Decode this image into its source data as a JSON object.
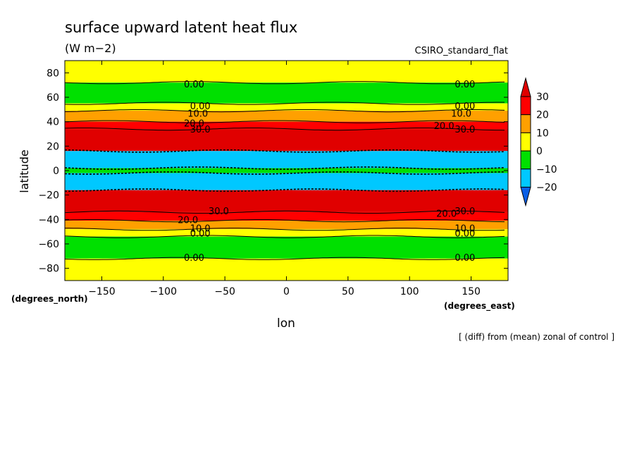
{
  "chart_data": {
    "type": "heatmap",
    "title": "surface upward latent heat flux",
    "units": "(W m−2)",
    "model": "CSIRO_standard_flat",
    "xlabel": "lon",
    "ylabel": "latitude",
    "x_units": "(degrees_east)",
    "y_units": "(degrees_north)",
    "footnote": "[ (diff) from (mean) zonal of control ]",
    "xlim": [
      -180,
      180
    ],
    "ylim": [
      -90,
      90
    ],
    "x_ticks": [
      -150,
      -100,
      -50,
      0,
      50,
      100,
      150
    ],
    "x_tick_labels": [
      "−150",
      "−100",
      "−50",
      "0",
      "50",
      "100",
      "150"
    ],
    "y_ticks": [
      80,
      60,
      40,
      20,
      0,
      -20,
      -40,
      -60,
      -80
    ],
    "y_tick_labels": [
      "80",
      "60",
      "40",
      "20",
      "0",
      "−20",
      "−40",
      "−60",
      "−80"
    ],
    "colorbar": {
      "levels": [
        -20,
        -10,
        0,
        10,
        20,
        30
      ],
      "labels": [
        "−20",
        "−10",
        "0",
        "10",
        "20",
        "30"
      ],
      "colors": [
        "#0a5fe6",
        "#00c8ff",
        "#00e000",
        "#ffff00",
        "#ffa000",
        "#ff0000",
        "#e00000"
      ]
    },
    "zonal_bands": [
      {
        "lat_from": 90,
        "lat_to": 72,
        "value_range": [
          0,
          10
        ]
      },
      {
        "lat_from": 72,
        "lat_to": 55,
        "value_range": [
          -10,
          0
        ]
      },
      {
        "lat_from": 55,
        "lat_to": 49,
        "value_range": [
          0,
          10
        ]
      },
      {
        "lat_from": 49,
        "lat_to": 40,
        "value_range": [
          10,
          20
        ]
      },
      {
        "lat_from": 40,
        "lat_to": 34,
        "value_range": [
          20,
          30
        ]
      },
      {
        "lat_from": 34,
        "lat_to": 16,
        "value_range": [
          30,
          40
        ]
      },
      {
        "lat_from": 16,
        "lat_to": 2,
        "value_range": [
          -20,
          -10
        ]
      },
      {
        "lat_from": 2,
        "lat_to": -2,
        "value_range": [
          -10,
          0
        ]
      },
      {
        "lat_from": -2,
        "lat_to": -16,
        "value_range": [
          -20,
          -10
        ]
      },
      {
        "lat_from": -16,
        "lat_to": -34,
        "value_range": [
          30,
          40
        ]
      },
      {
        "lat_from": -34,
        "lat_to": -41,
        "value_range": [
          20,
          30
        ]
      },
      {
        "lat_from": -41,
        "lat_to": -48,
        "value_range": [
          10,
          20
        ]
      },
      {
        "lat_from": -48,
        "lat_to": -54,
        "value_range": [
          0,
          10
        ]
      },
      {
        "lat_from": -54,
        "lat_to": -72,
        "value_range": [
          -10,
          0
        ]
      },
      {
        "lat_from": -72,
        "lat_to": -90,
        "value_range": [
          0,
          10
        ]
      }
    ],
    "contour_labels": [
      {
        "text": "0.00",
        "lon": -75,
        "lat": 71
      },
      {
        "text": "0.00",
        "lon": 145,
        "lat": 71
      },
      {
        "text": "0.00",
        "lon": -70,
        "lat": 53
      },
      {
        "text": "0.00",
        "lon": 145,
        "lat": 53
      },
      {
        "text": "10.0",
        "lon": -72,
        "lat": 47
      },
      {
        "text": "10.0",
        "lon": 142,
        "lat": 47
      },
      {
        "text": "20.0",
        "lon": -75,
        "lat": 39
      },
      {
        "text": "20.0",
        "lon": 128,
        "lat": 37
      },
      {
        "text": "30.0",
        "lon": -70,
        "lat": 34
      },
      {
        "text": "30.0",
        "lon": 145,
        "lat": 34
      },
      {
        "text": "30.0",
        "lon": -55,
        "lat": -33
      },
      {
        "text": "30.0",
        "lon": 145,
        "lat": -33
      },
      {
        "text": "20.0",
        "lon": -80,
        "lat": -40
      },
      {
        "text": "20.0",
        "lon": 130,
        "lat": -35
      },
      {
        "text": "10.0",
        "lon": -70,
        "lat": -47
      },
      {
        "text": "10.0",
        "lon": 145,
        "lat": -47
      },
      {
        "text": "0.00",
        "lon": -70,
        "lat": -51
      },
      {
        "text": "0.00",
        "lon": 145,
        "lat": -51
      },
      {
        "text": "0.00",
        "lon": -75,
        "lat": -71
      },
      {
        "text": "0.00",
        "lon": 145,
        "lat": -71
      }
    ]
  }
}
